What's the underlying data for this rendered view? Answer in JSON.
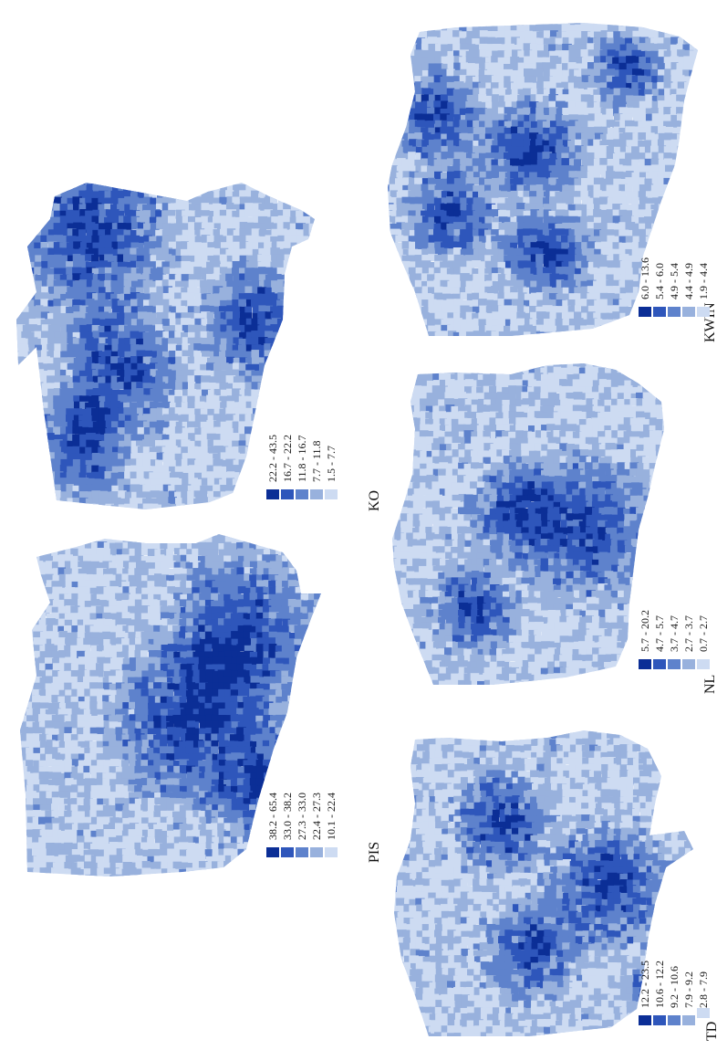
{
  "colors": {
    "class5": "#0b2e96",
    "class4": "#2e56bb",
    "class3": "#5e82cc",
    "class2": "#98b1dd",
    "class1": "#cddbf2"
  },
  "maps": [
    {
      "id": "ko",
      "title": "KO",
      "legend": [
        "22.2 - 43.5",
        "16.7 - 22.2",
        "11.8 - 16.7",
        "7.7 - 11.8",
        "1.5 -  7.7"
      ],
      "seed": 11,
      "hotspots": [
        [
          0.25,
          0.15,
          0.32
        ],
        [
          0.78,
          0.42,
          0.22
        ],
        [
          0.35,
          0.55,
          0.25
        ],
        [
          0.22,
          0.78,
          0.2
        ]
      ]
    },
    {
      "id": "pis",
      "title": "PIS",
      "legend": [
        "38.2 - 65.4",
        "33.0 - 38.2",
        "27.3 - 33.0",
        "22.4 - 27.3",
        "10.1 - 22.4"
      ],
      "seed": 23,
      "hotspots": [
        [
          0.72,
          0.3,
          0.3
        ],
        [
          0.55,
          0.55,
          0.3
        ],
        [
          0.8,
          0.72,
          0.22
        ]
      ]
    },
    {
      "id": "kwin",
      "title": "KWIN",
      "legend": [
        "6.0 - 13.6",
        "5.4 -  6.0",
        "4.9 -  5.4",
        "4.4 -  4.9",
        "1.9 -  4.4"
      ],
      "seed": 37,
      "hotspots": [
        [
          0.15,
          0.3,
          0.18
        ],
        [
          0.2,
          0.6,
          0.18
        ],
        [
          0.45,
          0.4,
          0.2
        ],
        [
          0.5,
          0.72,
          0.18
        ],
        [
          0.75,
          0.15,
          0.15
        ]
      ]
    },
    {
      "id": "nl",
      "title": "NL",
      "legend": [
        "5.7 - 20.2",
        "4.7 -  5.7",
        "3.7 -  4.7",
        "2.7 -  3.7",
        "0.7 -  2.7"
      ],
      "seed": 51,
      "hotspots": [
        [
          0.7,
          0.5,
          0.28
        ],
        [
          0.45,
          0.45,
          0.2
        ],
        [
          0.3,
          0.75,
          0.18
        ]
      ]
    },
    {
      "id": "td",
      "title": "TD",
      "legend": [
        "12.2 - 23.5",
        "10.6 - 12.2",
        "9.2 - 10.6",
        "7.9 -  9.2",
        "2.8 -  7.9"
      ],
      "seed": 67,
      "hotspots": [
        [
          0.7,
          0.5,
          0.25
        ],
        [
          0.35,
          0.3,
          0.2
        ],
        [
          0.45,
          0.7,
          0.2
        ],
        [
          0.85,
          0.85,
          0.12
        ]
      ]
    }
  ]
}
